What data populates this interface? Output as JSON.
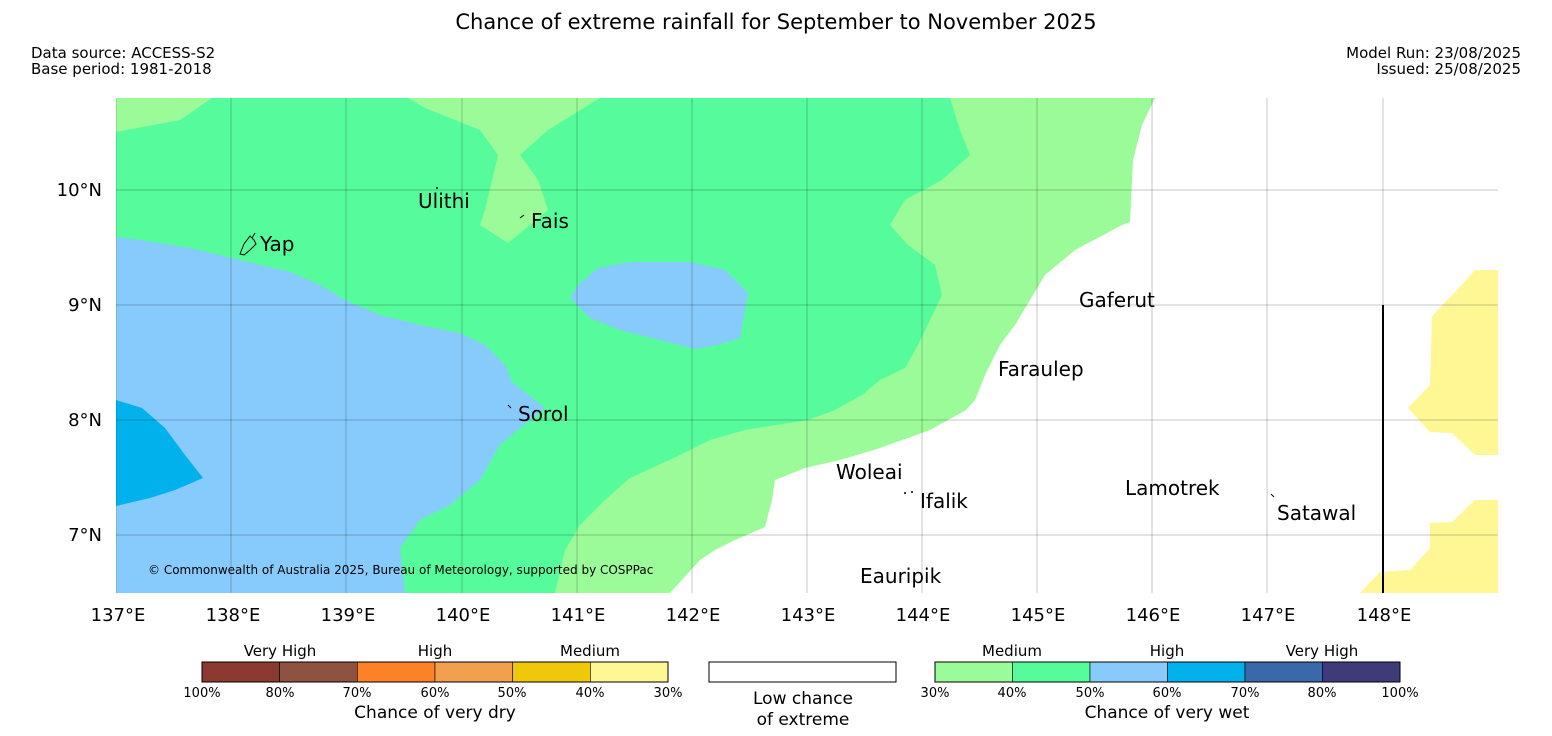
{
  "header": {
    "title": "Chance of extreme rainfall for September to November 2025",
    "data_source": "Data source: ACCESS-S2",
    "base_period": "Base period: 1981-2018",
    "model_run": "Model Run: 23/08/2025",
    "issued": "Issued: 25/08/2025"
  },
  "map": {
    "lat_labels": [
      "10°N",
      "9°N",
      "8°N",
      "7°N"
    ],
    "lon_labels": [
      "137°E",
      "138°E",
      "139°E",
      "140°E",
      "141°E",
      "142°E",
      "143°E",
      "144°E",
      "145°E",
      "146°E",
      "147°E",
      "148°E"
    ],
    "places": [
      "Ulithi",
      "Fais",
      "Yap",
      "Gaferut",
      "Faraulep",
      "Sorol",
      "Woleai",
      "Ifalik",
      "Lamotrek",
      "Satawal",
      "Eauripik"
    ],
    "copyright": "© Commonwealth of Australia 2025, Bureau of Meteorology, supported by COSPPac",
    "colors": {
      "wet_medium_30_40": "#9bfb98",
      "wet_medium_40_50": "#56fc9c",
      "wet_high_50_60": "#86cbfb",
      "wet_high_60_70": "#00b1ec",
      "dry_medium_30_40": "#fef794",
      "low": "#ffffff"
    }
  },
  "legend": {
    "dry": {
      "categories": [
        "Very High",
        "High",
        "Medium"
      ],
      "ticks": [
        "100%",
        "80%",
        "70%",
        "60%",
        "50%",
        "40%",
        "30%"
      ],
      "colors": [
        "#8b3a2f",
        "#8f5240",
        "#fd8126",
        "#f2a04d",
        "#f0c80a",
        "#fef794"
      ],
      "label": "Chance of very dry"
    },
    "low": {
      "line1": "Low chance",
      "line2": "of extreme",
      "color": "#ffffff"
    },
    "wet": {
      "categories": [
        "Medium",
        "High",
        "Very High"
      ],
      "ticks": [
        "30%",
        "40%",
        "50%",
        "60%",
        "70%",
        "80%",
        "100%"
      ],
      "colors": [
        "#9bfb98",
        "#56fc9c",
        "#86cbfb",
        "#00b1ec",
        "#3a68a8",
        "#3f3b7a"
      ],
      "label": "Chance of very wet"
    }
  }
}
